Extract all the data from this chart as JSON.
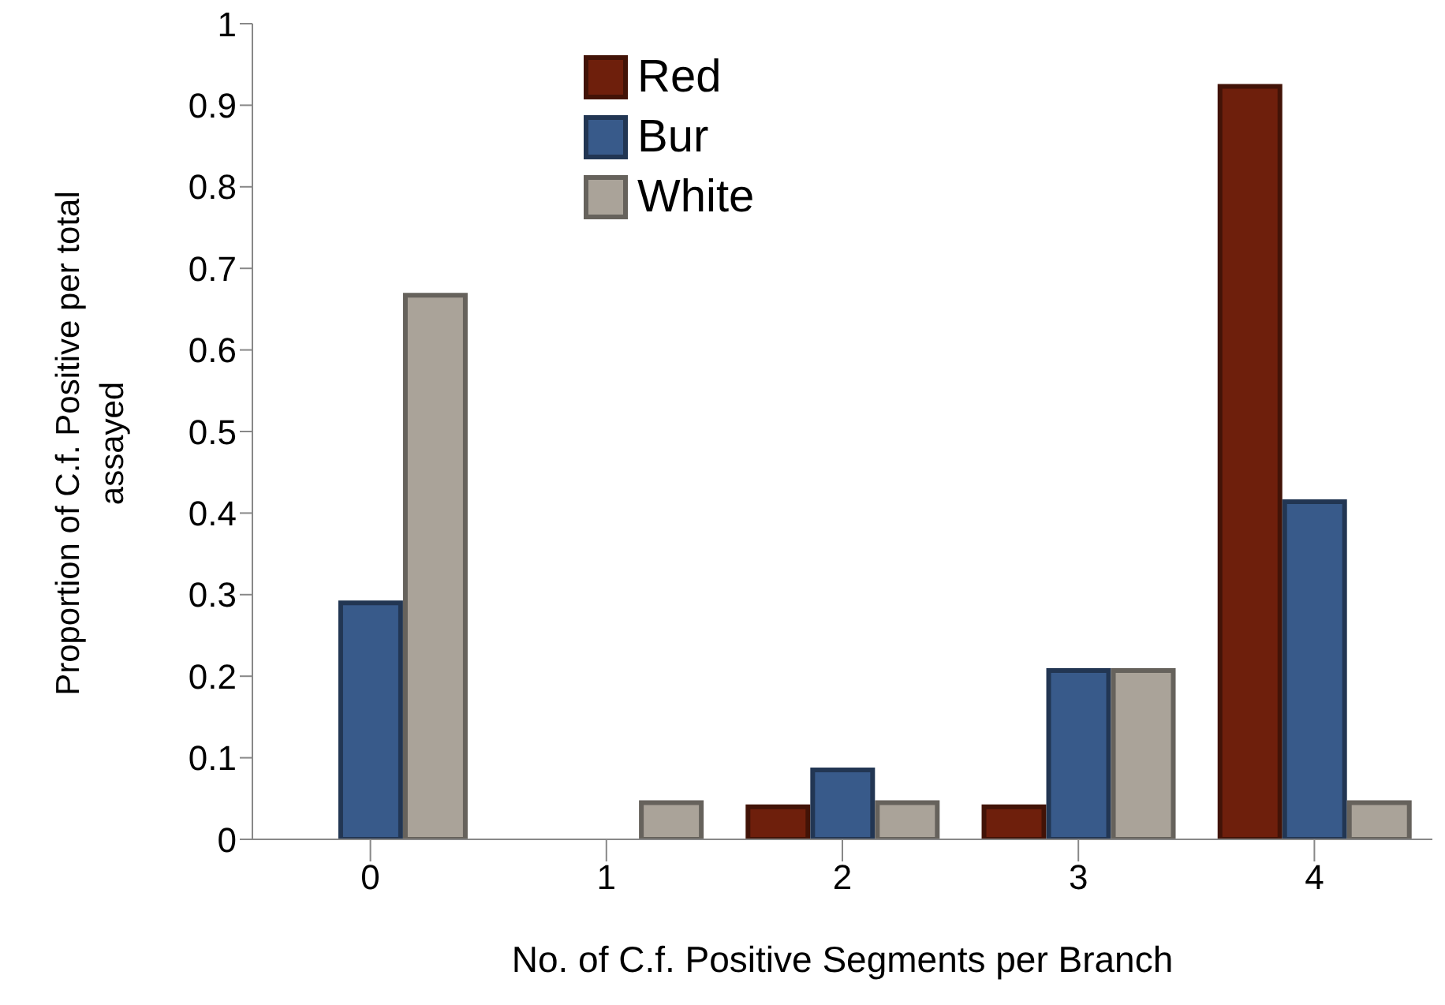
{
  "chart_data": {
    "type": "bar",
    "xlabel": "No. of C.f. Positive Segments per Branch",
    "ylabel": "Proportion of C.f. Positive per total assayed",
    "categories": [
      "0",
      "1",
      "2",
      "3",
      "4"
    ],
    "series": [
      {
        "name": "Red",
        "color": "#6e1f0c",
        "values": [
          0,
          0,
          0.04,
          0.04,
          0.923
        ]
      },
      {
        "name": "Bur",
        "color": "#385a8a",
        "values": [
          0.29,
          0,
          0.085,
          0.207,
          0.414
        ]
      },
      {
        "name": "White",
        "color": "#aaa399",
        "values": [
          0.667,
          0.045,
          0.045,
          0.207,
          0.045
        ]
      }
    ],
    "ylim": [
      0,
      1
    ],
    "yticks": [
      0,
      0.1,
      0.2,
      0.3,
      0.4,
      0.5,
      0.6,
      0.7,
      0.8,
      0.9,
      1
    ],
    "grid": false,
    "legend": "top"
  }
}
